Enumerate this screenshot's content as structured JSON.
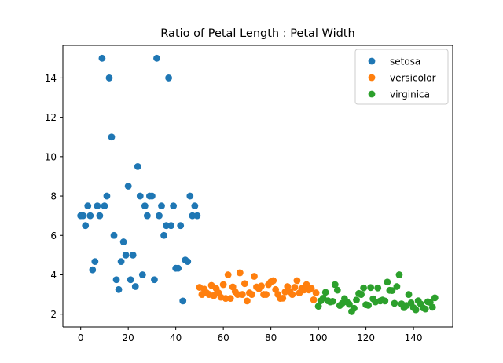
{
  "chart_data": {
    "type": "scatter",
    "title": "Ratio of Petal Length : Petal Width",
    "xlabel": "",
    "ylabel": "",
    "xlim": [
      -7.5,
      156.5
    ],
    "ylim": [
      1.35,
      15.65
    ],
    "xticks": [
      0,
      20,
      40,
      60,
      80,
      100,
      120,
      140
    ],
    "yticks": [
      2,
      4,
      6,
      8,
      10,
      12,
      14
    ],
    "grid": false,
    "legend": {
      "placement": "top-right"
    },
    "series": [
      {
        "name": "setosa",
        "color": "#1f77b4",
        "x": [
          0,
          1,
          2,
          3,
          4,
          5,
          6,
          7,
          8,
          9,
          10,
          11,
          12,
          13,
          14,
          15,
          16,
          17,
          18,
          19,
          20,
          21,
          22,
          23,
          24,
          25,
          26,
          27,
          28,
          29,
          30,
          31,
          32,
          33,
          34,
          35,
          36,
          37,
          38,
          39,
          40,
          41,
          42,
          43,
          44,
          45,
          46,
          47,
          48,
          49
        ],
        "y": [
          7.0,
          7.0,
          6.5,
          7.5,
          7.0,
          4.25,
          4.67,
          7.5,
          7.0,
          15.0,
          7.5,
          8.0,
          14.0,
          11.0,
          6.0,
          3.75,
          3.25,
          4.67,
          5.67,
          5.0,
          8.5,
          3.75,
          5.0,
          3.4,
          9.5,
          8.0,
          4.0,
          7.5,
          7.0,
          8.0,
          8.0,
          3.75,
          15.0,
          7.0,
          7.5,
          6.0,
          6.5,
          14.0,
          6.5,
          7.5,
          4.33,
          4.33,
          6.5,
          2.67,
          4.75,
          4.67,
          8.0,
          7.0,
          7.5,
          7.0
        ]
      },
      {
        "name": "versicolor",
        "color": "#ff7f0e",
        "x": [
          50,
          51,
          52,
          53,
          54,
          55,
          56,
          57,
          58,
          59,
          60,
          61,
          62,
          63,
          64,
          65,
          66,
          67,
          68,
          69,
          70,
          71,
          72,
          73,
          74,
          75,
          76,
          77,
          78,
          79,
          80,
          81,
          82,
          83,
          84,
          85,
          86,
          87,
          88,
          89,
          90,
          91,
          92,
          93,
          94,
          95,
          96,
          97,
          98,
          99
        ],
        "y": [
          3.36,
          3.0,
          3.27,
          3.08,
          3.0,
          3.46,
          2.94,
          3.3,
          3.08,
          2.86,
          3.5,
          2.8,
          4.0,
          2.8,
          3.38,
          3.14,
          3.0,
          4.1,
          3.0,
          3.55,
          2.67,
          3.08,
          3.0,
          3.92,
          3.38,
          3.29,
          3.43,
          3.0,
          3.0,
          3.5,
          3.64,
          3.7,
          3.25,
          3.0,
          2.8,
          2.81,
          3.13,
          3.4,
          3.15,
          3.0,
          3.36,
          3.7,
          3.08,
          3.3,
          3.23,
          3.5,
          3.23,
          3.31,
          2.73,
          3.08
        ]
      },
      {
        "name": "virginica",
        "color": "#2ca02c",
        "x": [
          100,
          101,
          102,
          103,
          104,
          105,
          106,
          107,
          108,
          109,
          110,
          111,
          112,
          113,
          114,
          115,
          116,
          117,
          118,
          119,
          120,
          121,
          122,
          123,
          124,
          125,
          126,
          127,
          128,
          129,
          130,
          131,
          132,
          133,
          134,
          135,
          136,
          137,
          138,
          139,
          140,
          141,
          142,
          143,
          144,
          145,
          146,
          147,
          148,
          149
        ],
        "y": [
          2.4,
          2.68,
          2.81,
          3.11,
          2.68,
          2.62,
          2.65,
          3.5,
          3.22,
          2.44,
          2.55,
          2.79,
          2.62,
          2.5,
          2.13,
          2.3,
          2.72,
          3.05,
          3.0,
          3.33,
          2.48,
          2.45,
          3.35,
          2.78,
          2.62,
          3.33,
          2.67,
          2.72,
          2.67,
          3.63,
          3.21,
          3.2,
          2.55,
          3.4,
          4.0,
          2.52,
          2.33,
          2.44,
          3.0,
          2.57,
          2.33,
          2.22,
          2.68,
          2.52,
          2.32,
          2.26,
          2.63,
          2.6,
          2.35,
          2.83
        ]
      }
    ]
  }
}
